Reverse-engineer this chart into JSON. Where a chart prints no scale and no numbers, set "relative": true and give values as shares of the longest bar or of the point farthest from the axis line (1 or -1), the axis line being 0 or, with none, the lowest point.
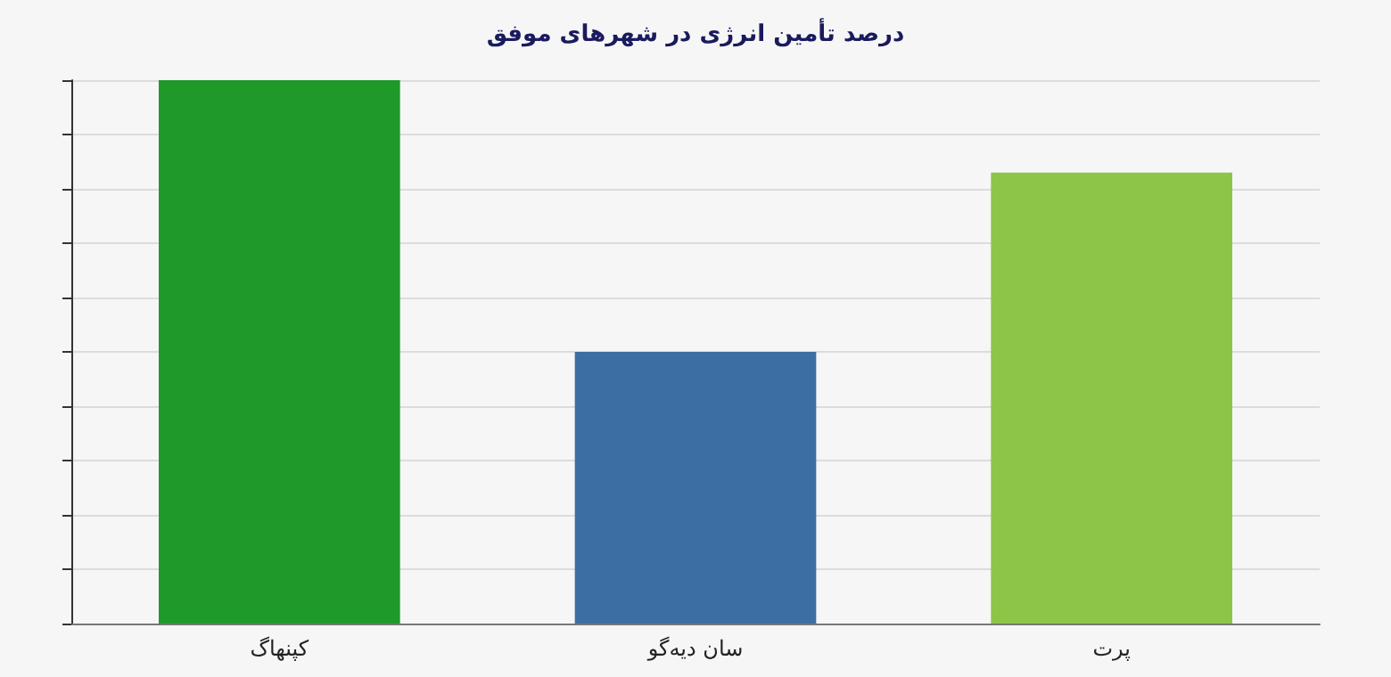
{
  "chart_data": {
    "type": "bar",
    "title": "درصد تأمین انرژی در شهرهای موفق",
    "categories": [
      "کپنهاگ",
      "سان دیه‌گو",
      "پرت"
    ],
    "values": [
      1,
      0.5,
      0.83
    ],
    "colors": [
      "#1f9a2a",
      "#3d6ea3",
      "#8cc548"
    ],
    "relative": true,
    "grid": "y"
  }
}
